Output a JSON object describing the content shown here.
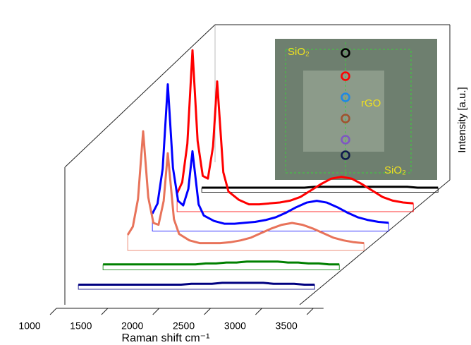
{
  "chart_data": {
    "type": "waterfall",
    "x_label": "Raman shift cm⁻¹",
    "y_label": "Intensity [a.u.]",
    "x": [
      1200,
      1250,
      1300,
      1350,
      1400,
      1450,
      1500,
      1550,
      1590,
      1650,
      1700,
      1800,
      1900,
      2000,
      2100,
      2200,
      2300,
      2400,
      2500,
      2600,
      2700,
      2800,
      2900,
      3000,
      3100,
      3200,
      3300,
      3400,
      3500
    ],
    "series": [
      {
        "color": "#000080",
        "values": [
          5,
          5,
          5,
          5,
          5,
          5,
          5,
          5,
          5,
          5,
          5,
          5,
          5,
          5,
          5,
          5,
          6,
          6,
          6,
          7,
          7,
          7,
          7,
          7,
          6,
          6,
          6,
          5,
          5
        ]
      },
      {
        "color": "#008000",
        "values": [
          6,
          6,
          6,
          6,
          6,
          6,
          6,
          6,
          6,
          6,
          6,
          6,
          6,
          6,
          6,
          7,
          7,
          8,
          8,
          9,
          9,
          9,
          9,
          8,
          8,
          7,
          7,
          6,
          6
        ]
      },
      {
        "color": "#e8735a",
        "values": [
          17,
          26,
          56,
          130,
          58,
          30,
          28,
          54,
          106,
          34,
          18,
          11,
          8,
          8,
          8,
          9,
          11,
          14,
          19,
          24,
          28,
          30,
          28,
          24,
          19,
          14,
          11,
          9,
          8
        ]
      },
      {
        "color": "#0000ff",
        "values": [
          19,
          30,
          68,
          160,
          69,
          33,
          28,
          46,
          87,
          29,
          17,
          11,
          8,
          8,
          9,
          10,
          12,
          15,
          20,
          26,
          31,
          33,
          31,
          26,
          20,
          15,
          12,
          10,
          9
        ]
      },
      {
        "color": "#ff0000",
        "values": [
          20,
          32,
          74,
          176,
          77,
          39,
          36,
          71,
          142,
          43,
          22,
          13,
          8,
          8,
          9,
          10,
          12,
          16,
          23,
          30,
          36,
          38,
          36,
          30,
          23,
          16,
          12,
          10,
          9
        ]
      },
      {
        "color": "#000000",
        "values": [
          5,
          5,
          5,
          5,
          5,
          5,
          5,
          5,
          5,
          5,
          5,
          5,
          5,
          5,
          5,
          5,
          6,
          6,
          6,
          6,
          6,
          6,
          6,
          6,
          6,
          6,
          5,
          5,
          5
        ]
      }
    ],
    "xlim": [
      1000,
      3600
    ],
    "xticks": [
      1000,
      1500,
      2000,
      2500,
      3000,
      3500
    ],
    "ylim": [
      0,
      200
    ],
    "inset": {
      "labels": [
        "SiO₂",
        "rGO",
        "SiO₂"
      ],
      "marker_colors": [
        "#000000",
        "#ff0000",
        "#1e88e5",
        "#a0522d",
        "#7e57c2",
        "#0d1b4c"
      ]
    }
  }
}
